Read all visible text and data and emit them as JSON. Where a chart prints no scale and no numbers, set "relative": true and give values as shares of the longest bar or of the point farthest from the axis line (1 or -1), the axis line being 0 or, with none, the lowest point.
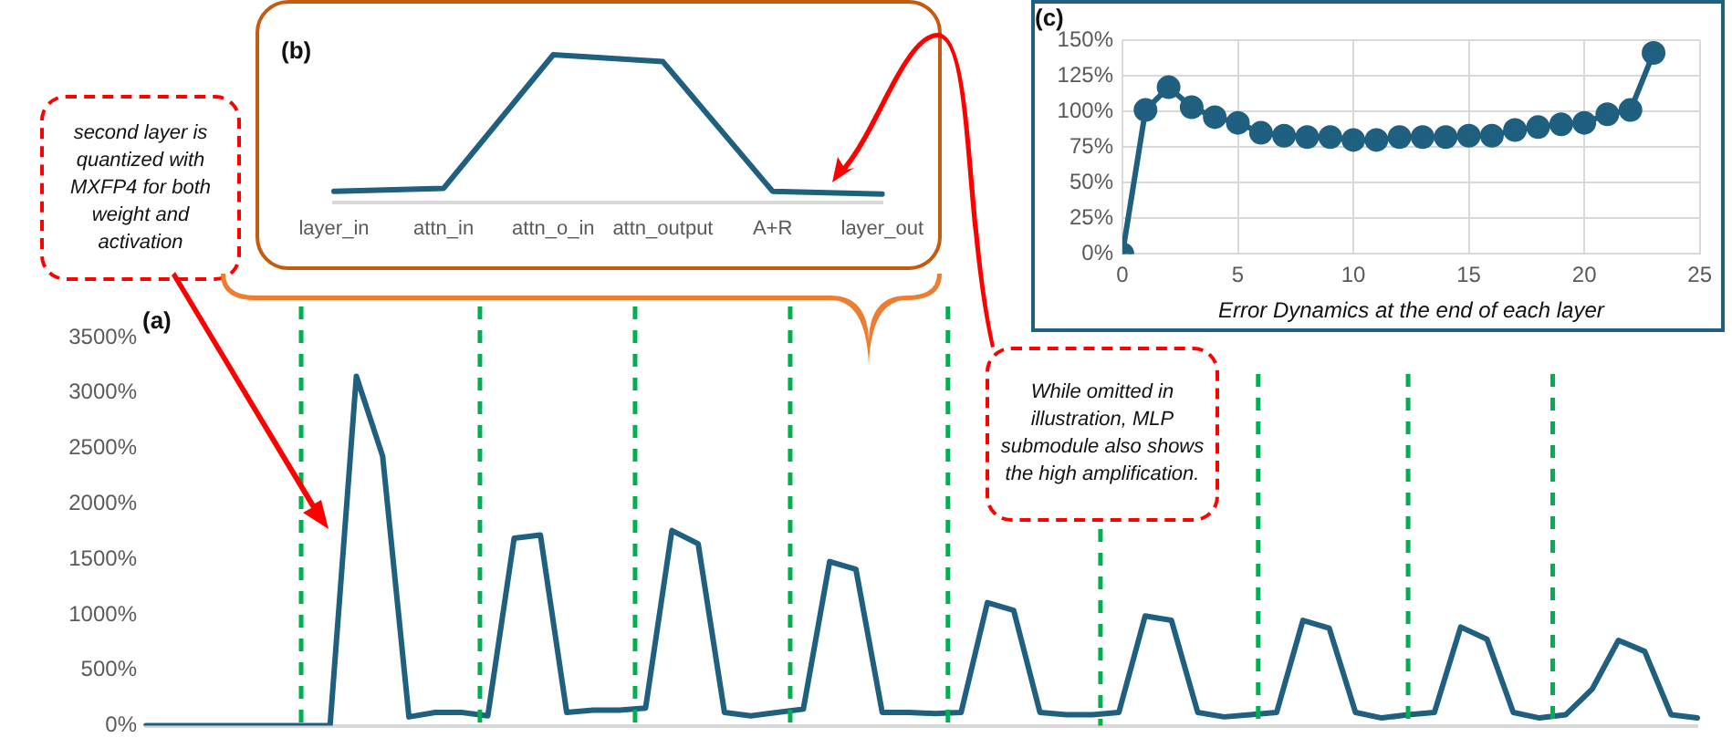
{
  "chart_data": [
    {
      "type": "line",
      "title": "(a)",
      "categories": [
        null,
        null,
        null,
        null,
        null,
        null,
        null,
        null,
        null,
        null,
        null,
        null,
        null,
        null,
        null,
        null,
        null,
        null,
        null,
        null,
        null,
        null,
        null,
        null,
        null,
        null,
        null,
        null,
        null,
        null,
        null,
        null,
        null,
        null,
        null,
        null,
        null,
        null,
        null,
        null,
        null,
        null,
        null,
        null,
        null,
        null,
        null,
        null,
        null,
        null,
        null,
        null,
        null,
        null,
        null,
        null,
        null,
        null,
        null,
        null
      ],
      "series": [
        {
          "color": "#1f5f7f",
          "values": [
            0,
            0,
            0,
            0,
            0,
            0,
            0,
            0,
            3150,
            2430,
            80,
            120,
            120,
            90,
            1690,
            1720,
            120,
            140,
            140,
            160,
            1760,
            1640,
            120,
            90,
            120,
            150,
            1480,
            1410,
            120,
            120,
            110,
            120,
            1110,
            1040,
            120,
            100,
            100,
            120,
            990,
            950,
            120,
            80,
            100,
            120,
            950,
            880,
            120,
            70,
            100,
            120,
            890,
            780,
            120,
            70,
            100,
            330,
            770,
            670,
            100,
            70
          ]
        }
      ],
      "ylim": [
        0,
        3500
      ],
      "yticks": [
        {
          "value": 0,
          "label": "0%"
        },
        {
          "value": 500,
          "label": "500%"
        },
        {
          "value": 1000,
          "label": "1000%"
        },
        {
          "value": 1500,
          "label": "1500%"
        },
        {
          "value": 2000,
          "label": "2000%"
        },
        {
          "value": 2500,
          "label": "2500%"
        },
        {
          "value": 3000,
          "label": "3000%"
        },
        {
          "value": 3500,
          "label": "3500%"
        }
      ],
      "tick_labels": "y",
      "grid": false,
      "legend": false,
      "annotations": [
        "second layer is quantized with MXFP4 for both weight and activation",
        "While omitted in illustration, MLP submodule also shows the high amplification."
      ]
    },
    {
      "type": "line",
      "title": "(b)",
      "relative": true,
      "categories": [
        "layer_in",
        "attn_in",
        "attn_o_in",
        "attn_output",
        "A+R",
        "layer_out"
      ],
      "series": [
        {
          "color": "#1f5f7f",
          "values": [
            0.074,
            0.094,
            1,
            0.953,
            0.074,
            0.055
          ]
        }
      ],
      "grid": false,
      "legend": false
    },
    {
      "type": "line",
      "xlabel": "Error Dynamics at the end of each layer",
      "title": "(c)",
      "x": [
        0,
        1,
        2,
        3,
        4,
        5,
        6,
        7,
        8,
        9,
        10,
        11,
        12,
        13,
        14,
        15,
        16,
        17,
        18,
        19,
        20,
        21,
        22,
        23
      ],
      "series": [
        {
          "color": "#1f5f7f",
          "values": [
            0,
            101,
            117,
            103,
            96,
            92,
            85,
            83,
            82,
            82,
            80,
            80,
            82,
            82,
            82,
            83,
            83,
            87,
            89,
            91,
            92,
            98,
            101,
            141
          ]
        }
      ],
      "xlim": [
        0,
        25
      ],
      "xticks": [
        0,
        5,
        10,
        15,
        20,
        25
      ],
      "ylim": [
        0,
        150
      ],
      "yticks": [
        {
          "value": 0,
          "label": "0%"
        },
        {
          "value": 25,
          "label": "25%"
        },
        {
          "value": 50,
          "label": "50%"
        },
        {
          "value": 75,
          "label": "75%"
        },
        {
          "value": 100,
          "label": "100%"
        },
        {
          "value": 125,
          "label": "125%"
        },
        {
          "value": 150,
          "label": "150%"
        }
      ],
      "grid": true,
      "legend": false,
      "marker": "circle"
    }
  ]
}
